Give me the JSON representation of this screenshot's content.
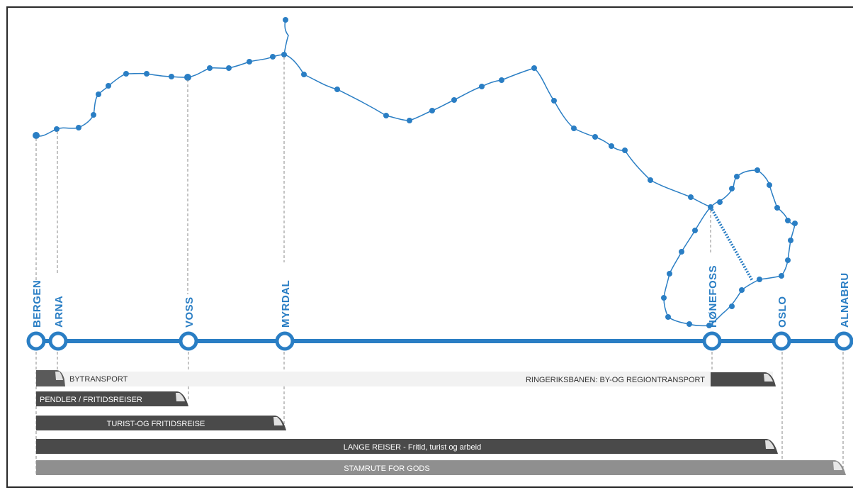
{
  "colors": {
    "route_blue": "#2a7ec4",
    "dark_bar": "#4a4a4a",
    "medium_bar": "#8f8f8f",
    "light_bar": "#f2f2f2",
    "leader_line": "#8a8a8a"
  },
  "stations": [
    {
      "id": "bergen",
      "name": "BERGEN"
    },
    {
      "id": "arna",
      "name": "ARNA"
    },
    {
      "id": "voss",
      "name": "VOSS"
    },
    {
      "id": "myrdal",
      "name": "MYRDAL"
    },
    {
      "id": "honefoss",
      "name": "HØNEFOSS"
    },
    {
      "id": "oslo",
      "name": "OSLO"
    },
    {
      "id": "alnabru",
      "name": "ALNABRU"
    }
  ],
  "service_bars": [
    {
      "id": "bytransport",
      "label": "BYTRANSPORT",
      "style": "light",
      "train_icon": "train-head-icon"
    },
    {
      "id": "ringeriksbanen",
      "label": "RINGERIKSBANEN: BY-OG REGIONTRANSPORT",
      "style": "dark-end",
      "train_icon": "train-head-icon"
    },
    {
      "id": "pendler",
      "label": "PENDLER / FRITIDSREISER",
      "style": "dark",
      "train_icon": "train-head-icon"
    },
    {
      "id": "turist",
      "label": "TURIST-OG FRITIDSREISE",
      "style": "dark",
      "train_icon": "train-head-icon"
    },
    {
      "id": "lange",
      "label": "LANGE REISER - Fritid, turist og arbeid",
      "style": "dark",
      "train_icon": "train-head-icon"
    },
    {
      "id": "stamrute",
      "label": "STAMRUTE FOR GODS",
      "style": "medium",
      "train_icon": "train-head-icon"
    }
  ]
}
